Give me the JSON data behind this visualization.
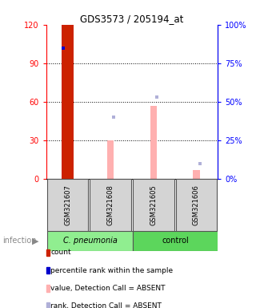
{
  "title": "GDS3573 / 205194_at",
  "samples": [
    "GSM321607",
    "GSM321608",
    "GSM321605",
    "GSM321606"
  ],
  "ylim_left": [
    0,
    120
  ],
  "ylim_right": [
    0,
    100
  ],
  "yticks_left": [
    0,
    30,
    60,
    90,
    120
  ],
  "yticks_right": [
    0,
    25,
    50,
    75,
    100
  ],
  "ytick_labels_left": [
    "0",
    "30",
    "60",
    "90",
    "120"
  ],
  "ytick_labels_right": [
    "0%",
    "25%",
    "50%",
    "75%",
    "100%"
  ],
  "count_values": [
    120,
    0,
    0,
    0
  ],
  "count_color": "#cc2200",
  "pct_rank_values": [
    85,
    0,
    0,
    0
  ],
  "pct_rank_color": "#0000cc",
  "value_absent_values": [
    0,
    30,
    57,
    7
  ],
  "value_absent_color": "#ffb0b0",
  "rank_absent_values": [
    0,
    40,
    53,
    10
  ],
  "rank_absent_color": "#b0b0d8",
  "legend_items": [
    {
      "color": "#cc2200",
      "label": "count"
    },
    {
      "color": "#0000cc",
      "label": "percentile rank within the sample"
    },
    {
      "color": "#ffb0b0",
      "label": "value, Detection Call = ABSENT"
    },
    {
      "color": "#b0b0d8",
      "label": "rank, Detection Call = ABSENT"
    }
  ],
  "group1_color": "#90EE90",
  "group2_color": "#5CD65C",
  "group1_label": "C. pneumonia",
  "group2_label": "control",
  "infection_label": "infection"
}
